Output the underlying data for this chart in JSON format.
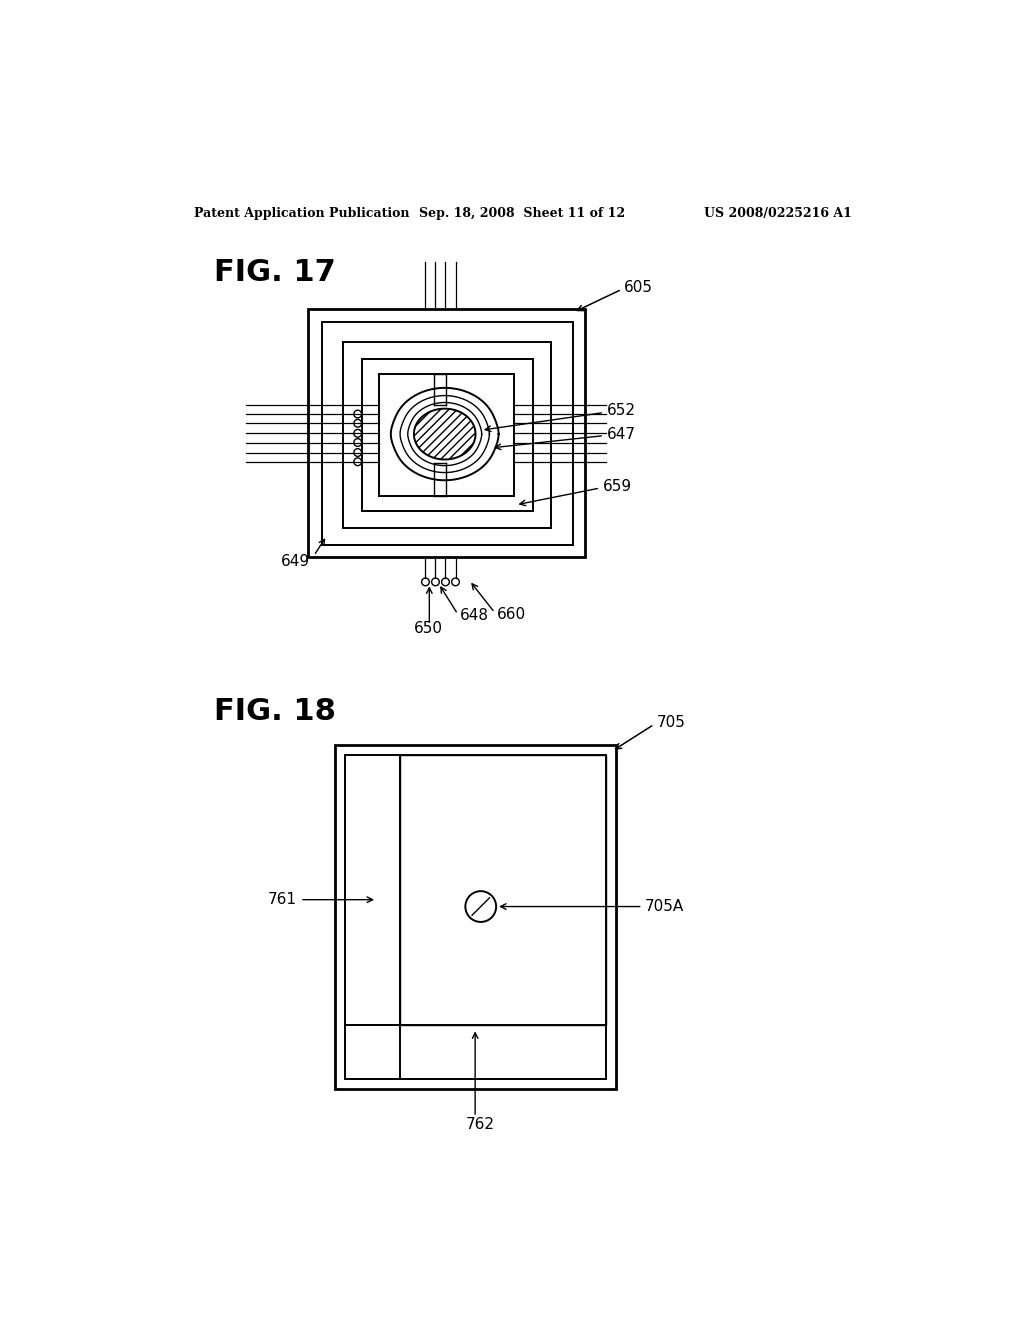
{
  "background_color": "#ffffff",
  "header_left": "Patent Application Publication",
  "header_mid": "Sep. 18, 2008  Sheet 11 of 12",
  "header_right": "US 2008/0225216 A1",
  "fig17_label": "FIG. 17",
  "fig18_label": "FIG. 18",
  "fig17_ref_605": "605",
  "fig17_ref_652": "652",
  "fig17_ref_647": "647",
  "fig17_ref_659": "659",
  "fig17_ref_649": "649",
  "fig17_ref_648": "648",
  "fig17_ref_650": "650",
  "fig17_ref_660": "660",
  "fig18_ref_705": "705",
  "fig18_ref_705A": "705A",
  "fig18_ref_761": "761",
  "fig18_ref_762": "762"
}
